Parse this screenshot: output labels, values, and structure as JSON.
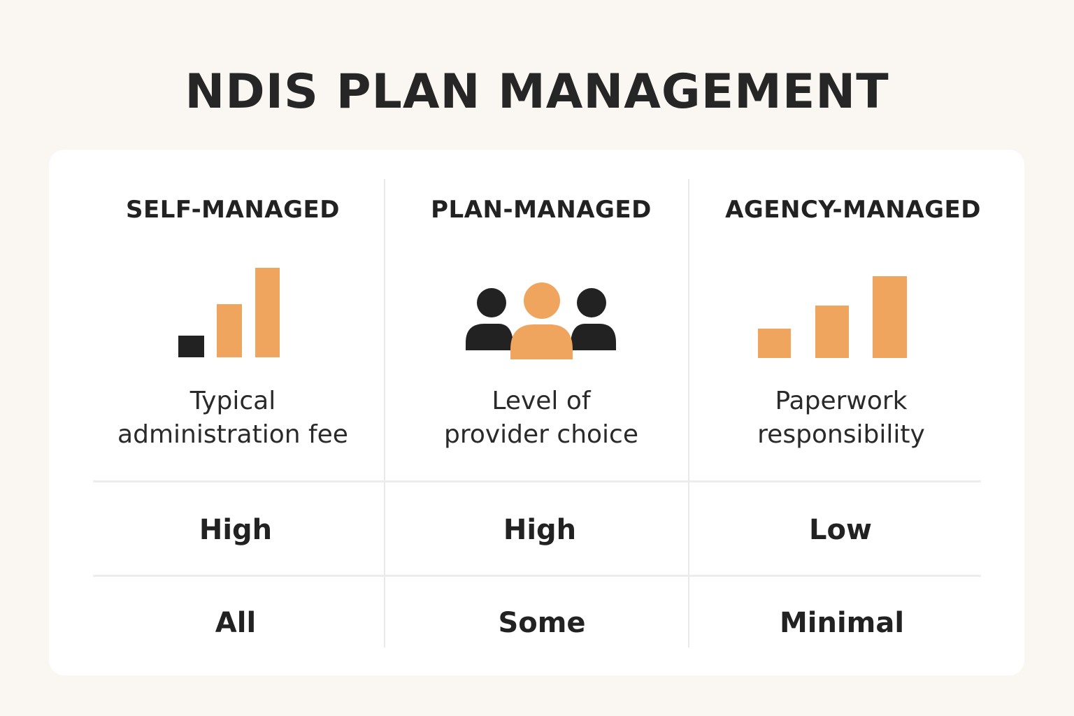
{
  "title": "NDIS PLAN MANAGEMENT",
  "colors": {
    "accent": "#f0a55e",
    "dark": "#222222",
    "background": "#faf7f3",
    "card": "#ffffff"
  },
  "columns": [
    {
      "header": "SELF-MANAGED",
      "icon": "bar-chart-icon",
      "description_line1": "Typical",
      "description_line2": "administration fee",
      "rows": [
        "High",
        "All"
      ]
    },
    {
      "header": "PLAN-MANAGED",
      "icon": "people-group-icon",
      "description_line1": "Level of",
      "description_line2": "provider choice",
      "rows": [
        "High",
        "Some"
      ]
    },
    {
      "header": "AGENCY-MANAGED",
      "icon": "bar-chart-icon",
      "description_line1": "Paperwork",
      "description_line2": "responsibility",
      "rows": [
        "Low",
        "Minimal"
      ]
    }
  ]
}
